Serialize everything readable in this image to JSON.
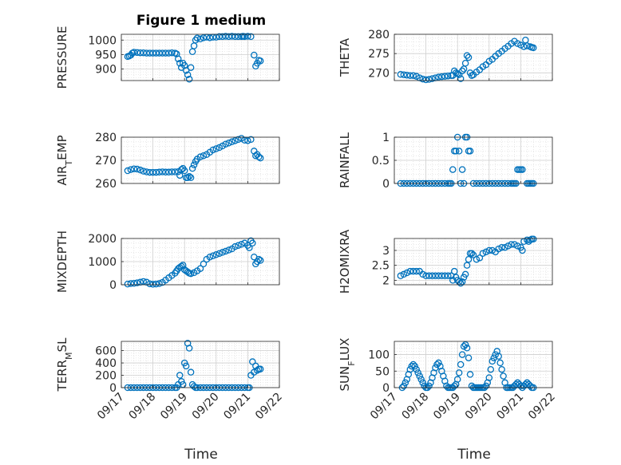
{
  "figure": {
    "title": "Figure 1 medium"
  },
  "chart_data": [
    {
      "type": "scatter",
      "ylabel": "PRESSURE",
      "ylim": [
        860,
        1020
      ],
      "yticks": [
        900,
        950,
        1000
      ],
      "xlim": [
        0,
        5
      ],
      "xticks": [
        "09/17",
        "09/18",
        "09/19",
        "09/20",
        "09/21",
        "09/22"
      ],
      "x": [
        0.2,
        0.25,
        0.3,
        0.35,
        0.4,
        0.5,
        0.6,
        0.7,
        0.8,
        0.9,
        1.0,
        1.1,
        1.2,
        1.3,
        1.4,
        1.5,
        1.6,
        1.7,
        1.75,
        1.8,
        1.85,
        1.9,
        1.95,
        2.0,
        2.05,
        2.1,
        2.15,
        2.2,
        2.25,
        2.3,
        2.35,
        2.4,
        2.5,
        2.6,
        2.7,
        2.8,
        2.9,
        3.0,
        3.1,
        3.2,
        3.3,
        3.4,
        3.5,
        3.6,
        3.7,
        3.8,
        3.85,
        3.9,
        4.0,
        4.1,
        4.2,
        4.25,
        4.3,
        4.35,
        4.4
      ],
      "y": [
        943,
        945,
        948,
        955,
        958,
        957,
        956,
        956,
        955,
        955,
        955,
        955,
        955,
        955,
        955,
        955,
        956,
        955,
        952,
        935,
        920,
        905,
        920,
        912,
        895,
        880,
        865,
        905,
        960,
        980,
        1000,
        1007,
        1004,
        1008,
        1010,
        1008,
        1010,
        1010,
        1012,
        1012,
        1013,
        1012,
        1013,
        1012,
        1012,
        1012,
        1013,
        1012,
        1013,
        1012,
        948,
        910,
        920,
        930,
        928
      ],
      "yfmt": ""
    },
    {
      "type": "scatter",
      "ylabel": "THETA",
      "ylim": [
        268,
        280
      ],
      "yticks": [
        270,
        275,
        280
      ],
      "xlim": [
        0,
        5
      ],
      "xticks": [
        "09/17",
        "09/18",
        "09/19",
        "09/20",
        "09/21",
        "09/22"
      ],
      "x": [
        0.2,
        0.3,
        0.4,
        0.5,
        0.6,
        0.7,
        0.8,
        0.9,
        1.0,
        1.1,
        1.2,
        1.3,
        1.4,
        1.5,
        1.6,
        1.7,
        1.8,
        1.85,
        1.9,
        1.95,
        2.0,
        2.05,
        2.1,
        2.15,
        2.2,
        2.25,
        2.3,
        2.35,
        2.4,
        2.45,
        2.5,
        2.6,
        2.7,
        2.8,
        2.9,
        3.0,
        3.1,
        3.2,
        3.3,
        3.4,
        3.5,
        3.6,
        3.7,
        3.8,
        3.9,
        4.0,
        4.1,
        4.15,
        4.2,
        4.3,
        4.35,
        4.4
      ],
      "y": [
        269.6,
        269.5,
        269.4,
        269.3,
        269.3,
        269.1,
        268.7,
        268.4,
        268.2,
        268.3,
        268.5,
        268.7,
        268.9,
        269.0,
        269.1,
        269.2,
        269.3,
        269.3,
        270.5,
        270.0,
        269.8,
        269.5,
        268.5,
        270.5,
        271.0,
        272.5,
        274.5,
        274.0,
        270.0,
        269.3,
        269.5,
        270.2,
        270.8,
        271.6,
        272.1,
        273.0,
        273.5,
        274.3,
        275.0,
        275.6,
        276.3,
        276.9,
        277.6,
        278.2,
        277.6,
        277.2,
        276.8,
        278.5,
        277.0,
        276.8,
        276.6,
        276.5
      ],
      "yfmt": ""
    },
    {
      "type": "scatter",
      "ylabel": "AIR_TEMP",
      "ylim": [
        260,
        280
      ],
      "yticks": [
        260,
        270,
        280
      ],
      "xlim": [
        0,
        5
      ],
      "xticks": [
        "09/17",
        "09/18",
        "09/19",
        "09/20",
        "09/21",
        "09/22"
      ],
      "x": [
        0.2,
        0.3,
        0.4,
        0.5,
        0.6,
        0.7,
        0.8,
        0.9,
        1.0,
        1.1,
        1.2,
        1.3,
        1.4,
        1.5,
        1.6,
        1.7,
        1.8,
        1.85,
        1.9,
        1.95,
        2.0,
        2.05,
        2.1,
        2.15,
        2.2,
        2.25,
        2.3,
        2.35,
        2.4,
        2.5,
        2.6,
        2.7,
        2.8,
        2.9,
        3.0,
        3.1,
        3.2,
        3.3,
        3.4,
        3.5,
        3.6,
        3.7,
        3.8,
        3.9,
        4.0,
        4.1,
        4.2,
        4.25,
        4.3,
        4.35,
        4.4
      ],
      "y": [
        265.5,
        266.0,
        266.3,
        266.2,
        265.8,
        265.3,
        265.0,
        264.8,
        264.8,
        264.8,
        264.9,
        265.0,
        264.9,
        264.9,
        265.0,
        265.0,
        265.1,
        263.5,
        266.0,
        266.5,
        265.5,
        262.5,
        262.5,
        263.0,
        262.5,
        266.5,
        268.0,
        269.5,
        270.5,
        271.5,
        272.0,
        272.5,
        273.5,
        274.5,
        275.0,
        275.5,
        276.2,
        277.0,
        277.5,
        278.0,
        278.5,
        279.0,
        279.5,
        278.7,
        278.5,
        279.0,
        274.0,
        272.0,
        272.5,
        271.5,
        271.0
      ],
      "yfmt": ""
    },
    {
      "type": "scatter",
      "ylabel": "RAINFALL",
      "ylim": [
        0,
        1
      ],
      "yticks": [
        0,
        0.5,
        1
      ],
      "xlim": [
        0,
        5
      ],
      "xticks": [
        "09/17",
        "09/18",
        "09/19",
        "09/20",
        "09/21",
        "09/22"
      ],
      "x": [
        0.2,
        0.3,
        0.4,
        0.5,
        0.6,
        0.7,
        0.8,
        0.9,
        1.0,
        1.1,
        1.2,
        1.3,
        1.4,
        1.5,
        1.6,
        1.7,
        1.75,
        1.8,
        1.85,
        1.9,
        1.95,
        2.0,
        2.05,
        2.1,
        2.15,
        2.2,
        2.25,
        2.3,
        2.35,
        2.4,
        2.5,
        2.6,
        2.7,
        2.8,
        2.9,
        3.0,
        3.1,
        3.2,
        3.3,
        3.4,
        3.5,
        3.6,
        3.7,
        3.75,
        3.8,
        3.85,
        3.9,
        3.95,
        4.0,
        4.05,
        4.2,
        4.25,
        4.3,
        4.35,
        4.4
      ],
      "y": [
        0,
        0,
        0,
        0,
        0,
        0,
        0,
        0,
        0,
        0,
        0,
        0,
        0,
        0,
        0,
        0,
        0,
        0,
        0.3,
        0.7,
        0.7,
        1.0,
        0.7,
        0,
        0.3,
        0,
        1.0,
        1.0,
        0.7,
        0.7,
        0,
        0,
        0,
        0,
        0,
        0,
        0,
        0,
        0,
        0,
        0,
        0,
        0,
        0,
        0,
        0,
        0.3,
        0.3,
        0.3,
        0.3,
        0,
        0,
        0,
        0,
        0
      ],
      "yfmt": ""
    },
    {
      "type": "scatter",
      "ylabel": "MIXDEPTH",
      "ylim": [
        0,
        2000
      ],
      "yticks": [
        0,
        1000,
        2000
      ],
      "xlim": [
        0,
        5
      ],
      "xticks": [
        "09/17",
        "09/18",
        "09/19",
        "09/20",
        "09/21",
        "09/22"
      ],
      "x": [
        0.2,
        0.3,
        0.4,
        0.5,
        0.6,
        0.7,
        0.8,
        0.9,
        1.0,
        1.1,
        1.2,
        1.3,
        1.4,
        1.5,
        1.6,
        1.7,
        1.75,
        1.8,
        1.85,
        1.9,
        1.95,
        2.0,
        2.05,
        2.1,
        2.15,
        2.2,
        2.3,
        2.4,
        2.5,
        2.6,
        2.7,
        2.8,
        2.9,
        3.0,
        3.1,
        3.2,
        3.3,
        3.4,
        3.5,
        3.6,
        3.7,
        3.8,
        3.9,
        4.0,
        4.05,
        4.1,
        4.15,
        4.2,
        4.25,
        4.3,
        4.35,
        4.4
      ],
      "y": [
        30,
        50,
        60,
        80,
        110,
        140,
        110,
        40,
        20,
        30,
        50,
        100,
        200,
        300,
        400,
        500,
        600,
        700,
        750,
        800,
        850,
        650,
        600,
        550,
        500,
        480,
        520,
        600,
        700,
        900,
        1100,
        1200,
        1250,
        1300,
        1350,
        1400,
        1450,
        1500,
        1550,
        1650,
        1700,
        1750,
        1800,
        1700,
        1600,
        1900,
        1800,
        1200,
        900,
        1000,
        1100,
        1050
      ],
      "yfmt": ""
    },
    {
      "type": "scatter",
      "ylabel": "H2OMIXRA",
      "ylim": [
        1.85,
        3.4
      ],
      "yticks": [
        2,
        2.5,
        3
      ],
      "xlim": [
        0,
        5
      ],
      "xticks": [
        "09/17",
        "09/18",
        "09/19",
        "09/20",
        "09/21",
        "09/22"
      ],
      "x": [
        0.2,
        0.3,
        0.4,
        0.5,
        0.6,
        0.7,
        0.8,
        0.9,
        1.0,
        1.1,
        1.2,
        1.3,
        1.4,
        1.5,
        1.6,
        1.7,
        1.8,
        1.85,
        1.9,
        1.95,
        2.0,
        2.05,
        2.1,
        2.15,
        2.2,
        2.25,
        2.3,
        2.35,
        2.4,
        2.45,
        2.5,
        2.6,
        2.7,
        2.8,
        2.9,
        3.0,
        3.1,
        3.2,
        3.3,
        3.4,
        3.5,
        3.6,
        3.7,
        3.8,
        3.9,
        4.0,
        4.05,
        4.1,
        4.2,
        4.25,
        4.3,
        4.35,
        4.4
      ],
      "y": [
        2.15,
        2.2,
        2.25,
        2.3,
        2.3,
        2.3,
        2.3,
        2.2,
        2.15,
        2.15,
        2.15,
        2.15,
        2.15,
        2.15,
        2.15,
        2.15,
        2.15,
        2.0,
        2.3,
        2.1,
        2.0,
        1.95,
        1.9,
        1.95,
        2.1,
        2.2,
        2.5,
        2.7,
        2.9,
        2.9,
        2.85,
        2.7,
        2.75,
        2.9,
        2.95,
        3.0,
        3.0,
        2.95,
        3.05,
        3.1,
        3.1,
        3.15,
        3.2,
        3.2,
        3.15,
        3.1,
        3.0,
        3.3,
        3.35,
        3.3,
        3.35,
        3.38,
        3.38
      ],
      "yfmt": ""
    },
    {
      "type": "scatter",
      "ylabel": "TERR_MSL",
      "ylim": [
        0,
        750
      ],
      "yticks": [
        0,
        200,
        400,
        600
      ],
      "xlim": [
        0,
        5
      ],
      "xticks": [
        "09/17",
        "09/18",
        "09/19",
        "09/20",
        "09/21",
        "09/22"
      ],
      "x": [
        0.2,
        0.3,
        0.4,
        0.5,
        0.6,
        0.7,
        0.8,
        0.9,
        1.0,
        1.1,
        1.2,
        1.3,
        1.4,
        1.5,
        1.6,
        1.7,
        1.75,
        1.8,
        1.85,
        1.9,
        1.95,
        2.0,
        2.05,
        2.1,
        2.15,
        2.2,
        2.25,
        2.3,
        2.35,
        2.4,
        2.5,
        2.6,
        2.7,
        2.8,
        2.9,
        3.0,
        3.1,
        3.2,
        3.3,
        3.4,
        3.5,
        3.6,
        3.7,
        3.8,
        3.9,
        4.0,
        4.05,
        4.1,
        4.15,
        4.2,
        4.25,
        4.3,
        4.35,
        4.4
      ],
      "y": [
        0,
        0,
        0,
        0,
        0,
        0,
        0,
        0,
        0,
        0,
        0,
        0,
        0,
        0,
        0,
        0,
        0,
        50,
        200,
        100,
        50,
        400,
        350,
        720,
        640,
        250,
        50,
        20,
        0,
        0,
        0,
        0,
        0,
        0,
        0,
        0,
        0,
        0,
        0,
        0,
        0,
        0,
        0,
        0,
        0,
        0,
        0,
        200,
        420,
        250,
        350,
        280,
        300,
        300
      ],
      "yfmt": ""
    },
    {
      "type": "scatter",
      "ylabel": "SUN_FLUX",
      "ylim": [
        0,
        140
      ],
      "yticks": [
        0,
        50,
        100
      ],
      "xlim": [
        0,
        5
      ],
      "xticks": [
        "09/17",
        "09/18",
        "09/19",
        "09/20",
        "09/21",
        "09/22"
      ],
      "x": [
        0.25,
        0.3,
        0.35,
        0.4,
        0.45,
        0.5,
        0.55,
        0.6,
        0.65,
        0.7,
        0.75,
        0.8,
        0.85,
        0.9,
        0.95,
        1.0,
        1.05,
        1.1,
        1.15,
        1.2,
        1.25,
        1.3,
        1.35,
        1.4,
        1.45,
        1.5,
        1.55,
        1.6,
        1.65,
        1.7,
        1.75,
        1.8,
        1.85,
        1.9,
        1.95,
        2.0,
        2.05,
        2.1,
        2.15,
        2.2,
        2.25,
        2.3,
        2.35,
        2.4,
        2.45,
        2.5,
        2.55,
        2.6,
        2.65,
        2.7,
        2.75,
        2.8,
        2.85,
        2.9,
        2.95,
        3.0,
        3.05,
        3.1,
        3.15,
        3.2,
        3.25,
        3.3,
        3.35,
        3.4,
        3.45,
        3.5,
        3.55,
        3.6,
        3.65,
        3.7,
        3.75,
        3.8,
        3.85,
        3.9,
        3.95,
        4.0,
        4.05,
        4.1,
        4.15,
        4.2,
        4.25,
        4.3,
        4.35,
        4.4
      ],
      "y": [
        0,
        5,
        15,
        25,
        40,
        55,
        65,
        70,
        65,
        55,
        45,
        35,
        25,
        15,
        5,
        0,
        0,
        5,
        15,
        30,
        45,
        60,
        70,
        75,
        65,
        50,
        35,
        20,
        5,
        0,
        0,
        0,
        0,
        5,
        10,
        25,
        45,
        70,
        100,
        125,
        130,
        120,
        90,
        40,
        5,
        0,
        0,
        0,
        0,
        0,
        0,
        0,
        0,
        5,
        15,
        30,
        55,
        80,
        90,
        100,
        110,
        95,
        75,
        55,
        35,
        15,
        0,
        0,
        0,
        0,
        0,
        5,
        10,
        15,
        10,
        5,
        0,
        5,
        10,
        15,
        10,
        5,
        0,
        0
      ],
      "yfmt": ""
    }
  ],
  "xlabels": {
    "left": "Time",
    "right": "Time"
  },
  "colors": {
    "marker": "#0072bd",
    "grid": "#d9d9d9",
    "axis": "#262626"
  }
}
